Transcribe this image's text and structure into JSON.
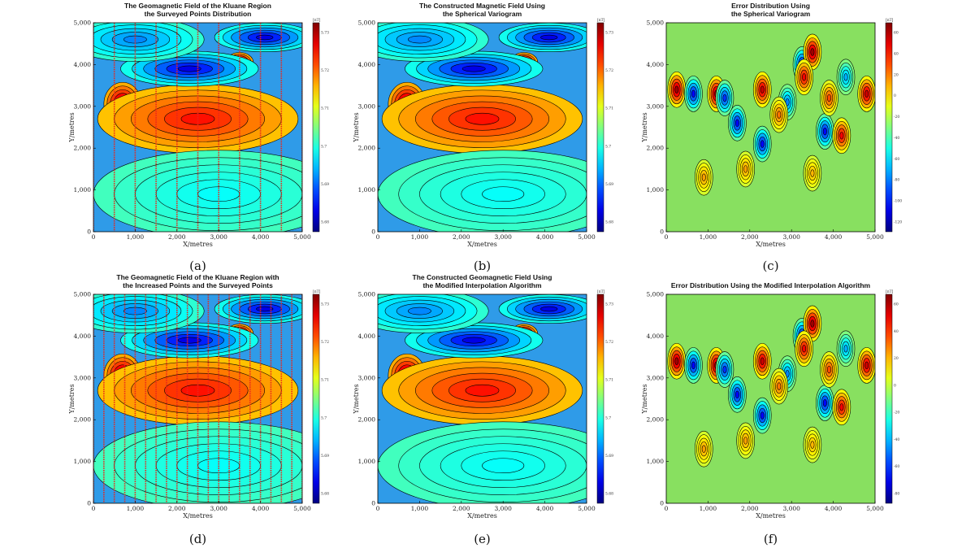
{
  "figure": {
    "panels": [
      {
        "id": "a",
        "letter": "(a)",
        "title_lines": [
          "The Geomagnetic Field of the Kluane Region",
          "the Surveyed Points Distribution"
        ],
        "kind": "field",
        "survey_lines": 11,
        "cb_unit": "[nT]",
        "cb_ticks": [
          "5.73",
          "5.72",
          "5.71",
          "5.7",
          "5.69",
          "5.68"
        ]
      },
      {
        "id": "b",
        "letter": "(b)",
        "title_lines": [
          "The Constructed Magnetic Field Using",
          "the Spherical Variogram"
        ],
        "kind": "field",
        "survey_lines": 0,
        "cb_unit": "[nT]",
        "cb_ticks": [
          "5.73",
          "5.72",
          "5.71",
          "5.7",
          "5.69",
          "5.68"
        ]
      },
      {
        "id": "c",
        "letter": "(c)",
        "title_lines": [
          "Error Distribution Using",
          "the Spherical Variogram"
        ],
        "kind": "error",
        "survey_lines": 0,
        "cb_unit": "[nT]",
        "cb_ticks": [
          "60",
          "40",
          "20",
          "0",
          "-20",
          "-40",
          "-60",
          "-80",
          "-100",
          "-120"
        ]
      },
      {
        "id": "d",
        "letter": "(d)",
        "title_lines": [
          "The Geomagnetic Field of the Kluane Region with",
          "the Increased Points and the Surveyed Points"
        ],
        "kind": "field",
        "survey_lines": 21,
        "cb_unit": "[nT]",
        "cb_ticks": [
          "5.73",
          "5.72",
          "5.71",
          "5.7",
          "5.69",
          "5.68"
        ]
      },
      {
        "id": "e",
        "letter": "(e)",
        "title_lines": [
          "The Constructed Geomagnetic Field Using",
          "the Modified Interpolation Algorithm"
        ],
        "kind": "field",
        "survey_lines": 0,
        "cb_unit": "[nT]",
        "cb_ticks": [
          "5.73",
          "5.72",
          "5.71",
          "5.7",
          "5.69",
          "5.68"
        ]
      },
      {
        "id": "f",
        "letter": "(f)",
        "title_lines": [
          "Error Distribution Using the Modified Interpolation Algorithm"
        ],
        "kind": "error",
        "survey_lines": 0,
        "cb_unit": "[nT]",
        "cb_ticks": [
          "60",
          "40",
          "20",
          "0",
          "-20",
          "-40",
          "-60",
          "-80"
        ]
      }
    ]
  },
  "chart_data": [
    {
      "type": "heatmap",
      "panel": "a",
      "title": "The Geomagnetic Field of the Kluane Region the Surveyed Points Distribution",
      "xlabel": "X/metres",
      "ylabel": "Y/metres",
      "xlim": [
        0,
        5000
      ],
      "ylim": [
        0,
        5000
      ],
      "xticks": [
        "0",
        "1,000",
        "2,000",
        "3,000",
        "4,000",
        "5,000"
      ],
      "yticks": [
        "0",
        "1,000",
        "2,000",
        "3,000",
        "4,000",
        "5,000"
      ],
      "colorbar_unit": "[nT]",
      "colorbar_ticks": [
        "5.73",
        "5.72",
        "5.71",
        "5.7",
        "5.69",
        "5.68"
      ],
      "survey_line_count": 11
    },
    {
      "type": "heatmap",
      "panel": "b",
      "title": "The Constructed Magnetic Field Using the Spherical Variogram",
      "xlabel": "X/metres",
      "ylabel": "Y/metres",
      "xlim": [
        0,
        5000
      ],
      "ylim": [
        0,
        5000
      ],
      "xticks": [
        "0",
        "1,000",
        "2,000",
        "3,000",
        "4,000",
        "5,000"
      ],
      "yticks": [
        "0",
        "1,000",
        "2,000",
        "3,000",
        "4,000",
        "5,000"
      ],
      "colorbar_unit": "[nT]",
      "colorbar_ticks": [
        "5.73",
        "5.72",
        "5.71",
        "5.7",
        "5.69",
        "5.68"
      ]
    },
    {
      "type": "heatmap",
      "panel": "c",
      "title": "Error Distribution Using the Spherical Variogram",
      "xlabel": "X/metres",
      "ylabel": "Y/metres",
      "xlim": [
        0,
        5000
      ],
      "ylim": [
        0,
        5000
      ],
      "xticks": [
        "0",
        "1,000",
        "2,000",
        "3,000",
        "4,000",
        "5,000"
      ],
      "yticks": [
        "0",
        "1,000",
        "2,000",
        "3,000",
        "4,000",
        "5,000"
      ],
      "colorbar_unit": "[nT]",
      "colorbar_ticks": [
        "60",
        "40",
        "20",
        "0",
        "-20",
        "-40",
        "-60",
        "-80",
        "-100",
        "-120"
      ]
    },
    {
      "type": "heatmap",
      "panel": "d",
      "title": "The Geomagnetic Field of the Kluane Region with the Increased Points and the Surveyed Points",
      "xlabel": "X/metres",
      "ylabel": "Y/metres",
      "xlim": [
        0,
        5000
      ],
      "ylim": [
        0,
        5000
      ],
      "xticks": [
        "0",
        "1,000",
        "2,000",
        "3,000",
        "4,000",
        "5,000"
      ],
      "yticks": [
        "0",
        "1,000",
        "2,000",
        "3,000",
        "4,000",
        "5,000"
      ],
      "colorbar_unit": "[nT]",
      "colorbar_ticks": [
        "5.73",
        "5.72",
        "5.71",
        "5.7",
        "5.69",
        "5.68"
      ],
      "survey_line_count": 21
    },
    {
      "type": "heatmap",
      "panel": "e",
      "title": "The Constructed Geomagnetic Field Using the Modified Interpolation Algorithm",
      "xlabel": "X/metres",
      "ylabel": "Y/metres",
      "xlim": [
        0,
        5000
      ],
      "ylim": [
        0,
        5000
      ],
      "xticks": [
        "0",
        "1,000",
        "2,000",
        "3,000",
        "4,000",
        "5,000"
      ],
      "yticks": [
        "0",
        "1,000",
        "2,000",
        "3,000",
        "4,000",
        "5,000"
      ],
      "colorbar_unit": "[nT]",
      "colorbar_ticks": [
        "5.73",
        "5.72",
        "5.71",
        "5.7",
        "5.69",
        "5.68"
      ]
    },
    {
      "type": "heatmap",
      "panel": "f",
      "title": "Error Distribution Using the Modified Interpolation Algorithm",
      "xlabel": "X/metres",
      "ylabel": "Y/metres",
      "xlim": [
        0,
        5000
      ],
      "ylim": [
        0,
        5000
      ],
      "xticks": [
        "0",
        "1,000",
        "2,000",
        "3,000",
        "4,000",
        "5,000"
      ],
      "yticks": [
        "0",
        "1,000",
        "2,000",
        "3,000",
        "4,000",
        "5,000"
      ],
      "colorbar_unit": "[nT]",
      "colorbar_ticks": [
        "60",
        "40",
        "20",
        "0",
        "-20",
        "-40",
        "-60",
        "-80"
      ]
    }
  ],
  "axis": {
    "xlabel": "X/metres",
    "ylabel": "Y/metres",
    "ticks": [
      "0",
      "1,000",
      "2,000",
      "3,000",
      "4,000",
      "5,000"
    ]
  },
  "colors": {
    "line_red": "#e8261c",
    "contour": "#000000",
    "field_background": "#2f9be8",
    "error_background": "#88e060"
  },
  "field_features": [
    {
      "x": 3500,
      "y": 4050,
      "amp": 1.6,
      "sx": 220,
      "sy": 160
    },
    {
      "x": 1900,
      "y": 2400,
      "amp": 1.35,
      "sx": 600,
      "sy": 320
    },
    {
      "x": 3400,
      "y": 2550,
      "amp": 1.15,
      "sx": 550,
      "sy": 300
    },
    {
      "x": 700,
      "y": 3050,
      "amp": 0.95,
      "sx": 300,
      "sy": 350
    },
    {
      "x": 2500,
      "y": 2700,
      "amp": 0.6,
      "sx": 1600,
      "sy": 550
    },
    {
      "x": 2300,
      "y": 3900,
      "amp": -1.0,
      "sx": 1100,
      "sy": 280
    },
    {
      "x": 4100,
      "y": 4650,
      "amp": -1.2,
      "sx": 800,
      "sy": 230
    },
    {
      "x": 1000,
      "y": 4600,
      "amp": -0.55,
      "sx": 1100,
      "sy": 350
    },
    {
      "x": 3000,
      "y": 900,
      "amp": -0.2,
      "sx": 2000,
      "sy": 700
    }
  ],
  "error_features": [
    {
      "x": 250,
      "y": 3400,
      "amp": 1.2
    },
    {
      "x": 650,
      "y": 3300,
      "amp": -1.0
    },
    {
      "x": 1200,
      "y": 3300,
      "amp": 1.3
    },
    {
      "x": 1400,
      "y": 3200,
      "amp": -0.9
    },
    {
      "x": 1700,
      "y": 2600,
      "amp": -1.0
    },
    {
      "x": 2300,
      "y": 3400,
      "amp": 0.9
    },
    {
      "x": 2300,
      "y": 2100,
      "amp": -1.1
    },
    {
      "x": 2900,
      "y": 3100,
      "amp": -0.7
    },
    {
      "x": 3250,
      "y": 4000,
      "amp": -1.3
    },
    {
      "x": 3500,
      "y": 4300,
      "amp": 1.3
    },
    {
      "x": 3300,
      "y": 3700,
      "amp": 0.8
    },
    {
      "x": 3800,
      "y": 2400,
      "amp": -1.0
    },
    {
      "x": 4200,
      "y": 2300,
      "amp": 0.8
    },
    {
      "x": 4800,
      "y": 3300,
      "amp": 0.9
    },
    {
      "x": 3900,
      "y": 3200,
      "amp": 0.6
    },
    {
      "x": 2700,
      "y": 2800,
      "amp": 0.5
    },
    {
      "x": 1900,
      "y": 1500,
      "amp": 0.4
    },
    {
      "x": 900,
      "y": 1300,
      "amp": 0.4
    },
    {
      "x": 3500,
      "y": 1400,
      "amp": 0.35
    },
    {
      "x": 4300,
      "y": 3700,
      "amp": -0.6
    }
  ]
}
